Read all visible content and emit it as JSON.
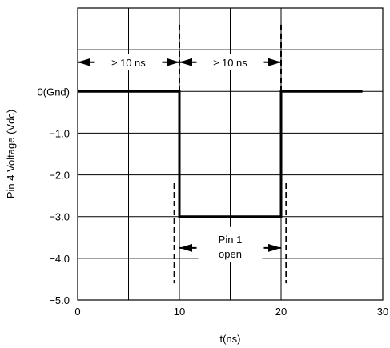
{
  "chart_data": {
    "type": "line",
    "title": "",
    "xlabel": "t(ns)",
    "ylabel": "Pin 4 Voltage (Vdc)",
    "xlim": [
      0,
      30
    ],
    "ylim": [
      -5.0,
      2.0
    ],
    "x_ticks": [
      0,
      10,
      20,
      30
    ],
    "x_tick_labels": [
      "0",
      "10",
      "20",
      "30"
    ],
    "x_grid": [
      0,
      5,
      10,
      15,
      20,
      25,
      30
    ],
    "y_ticks": [
      0,
      -1,
      -2,
      -3,
      -4,
      -5
    ],
    "y_tick_labels": [
      "0(Gnd)",
      "−1.0",
      "−2.0",
      "−3.0",
      "−4.0",
      "−5.0"
    ],
    "y_grid": [
      2,
      1,
      0,
      -1,
      -2,
      -3,
      -4,
      -5
    ],
    "grid": true,
    "series": [
      {
        "x": [
          0,
          10,
          10,
          20,
          20,
          28
        ],
        "y": [
          0,
          0,
          -3,
          -3,
          0,
          0
        ]
      }
    ],
    "annotations": [
      {
        "text": "≥  10 ns",
        "from_x": 0,
        "to_x": 10,
        "y": 0.7
      },
      {
        "text": "≥  10 ns",
        "from_x": 10,
        "to_x": 20,
        "y": 0.7
      },
      {
        "text": "Pin 1",
        "text2": "open",
        "from_x": 10,
        "to_x": 20,
        "y": -3.75
      }
    ],
    "markers": [
      {
        "x": 10,
        "y_from": 1.6,
        "y_to": 0.0
      },
      {
        "x": 20,
        "y_from": 1.6,
        "y_to": 0.0
      },
      {
        "x": 9.5,
        "y_from": -2.2,
        "y_to": -4.6
      },
      {
        "x": 20.5,
        "y_from": -2.2,
        "y_to": -4.6
      }
    ]
  }
}
